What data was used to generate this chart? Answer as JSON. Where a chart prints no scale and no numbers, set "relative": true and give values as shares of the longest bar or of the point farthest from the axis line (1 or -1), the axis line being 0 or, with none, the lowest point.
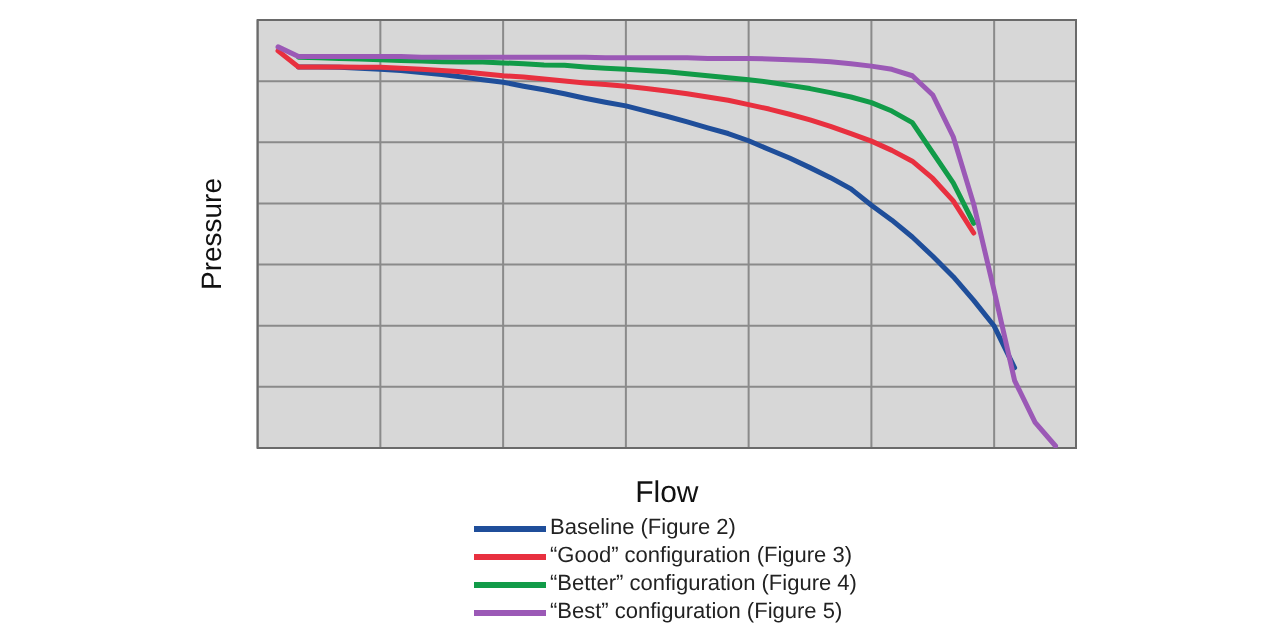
{
  "chart_data": {
    "type": "line",
    "relative": true,
    "xlabel": "Flow",
    "ylabel": "Pressure",
    "grid": true,
    "legend": "bottom",
    "marker": "none",
    "line_style": "solid",
    "categories": [
      null,
      null,
      null,
      null,
      null,
      null,
      null,
      null,
      null,
      null,
      null,
      null,
      null,
      null,
      null,
      null,
      null,
      null,
      null,
      null,
      null,
      null,
      null,
      null,
      null,
      null,
      null,
      null,
      null,
      null,
      null,
      null,
      null,
      null,
      null,
      null,
      null,
      null,
      null,
      null,
      null
    ],
    "series": [
      {
        "name": "Baseline (Figure 2)",
        "color": "#1f4e9a",
        "values": [
          null,
          null,
          0.95,
          0.95,
          0.949,
          0.947,
          0.944,
          0.941,
          0.936,
          0.931,
          0.925,
          0.918,
          0.912,
          0.902,
          0.893,
          0.883,
          0.872,
          0.862,
          0.853,
          0.84,
          0.827,
          0.813,
          0.798,
          0.784,
          0.766,
          0.744,
          0.723,
          0.699,
          0.674,
          0.646,
          0.605,
          0.568,
          0.526,
          0.478,
          0.427,
          0.368,
          0.304,
          0.2,
          null,
          null,
          null
        ]
      },
      {
        "name": "“Good” configuration (Figure 3)",
        "color": "#e8303f",
        "values": [
          null,
          0.99,
          0.95,
          0.95,
          0.95,
          0.949,
          0.949,
          0.947,
          0.944,
          0.941,
          0.938,
          0.933,
          0.928,
          0.925,
          0.92,
          0.915,
          0.91,
          0.906,
          0.902,
          0.896,
          0.89,
          0.883,
          0.875,
          0.867,
          0.856,
          0.845,
          0.832,
          0.818,
          0.802,
          0.784,
          0.765,
          0.742,
          0.715,
          0.672,
          0.616,
          0.536,
          null,
          null,
          null,
          null,
          null
        ]
      },
      {
        "name": "“Better” configuration (Figure 4)",
        "color": "#119b48",
        "values": [
          null,
          null,
          0.974,
          0.973,
          0.971,
          0.97,
          0.968,
          0.966,
          0.965,
          0.963,
          0.962,
          0.962,
          0.96,
          0.958,
          0.955,
          0.954,
          0.95,
          0.947,
          0.944,
          0.941,
          0.938,
          0.933,
          0.928,
          0.923,
          0.918,
          0.912,
          0.904,
          0.896,
          0.886,
          0.875,
          0.861,
          0.84,
          0.811,
          0.736,
          0.661,
          0.56,
          null,
          null,
          null,
          null,
          null
        ]
      },
      {
        "name": "“Best” configuration (Figure 5)",
        "color": "#9b59b6",
        "values": [
          null,
          1.0,
          0.976,
          0.976,
          0.976,
          0.976,
          0.976,
          0.976,
          0.974,
          0.974,
          0.974,
          0.974,
          0.974,
          0.974,
          0.974,
          0.974,
          0.974,
          0.973,
          0.973,
          0.973,
          0.973,
          0.973,
          0.971,
          0.971,
          0.971,
          0.97,
          0.968,
          0.966,
          0.963,
          0.958,
          0.952,
          0.944,
          0.928,
          0.88,
          0.776,
          0.608,
          0.392,
          0.168,
          0.064,
          0.005,
          null
        ]
      }
    ]
  }
}
